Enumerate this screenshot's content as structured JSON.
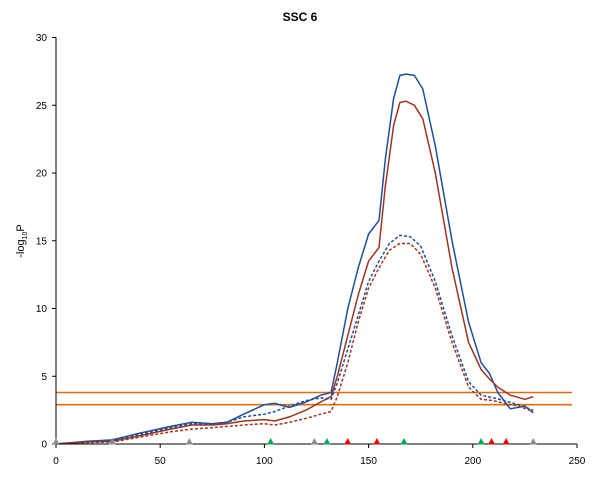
{
  "chart_data": {
    "type": "line",
    "title": "SSC 6",
    "ylabel": "-log10P",
    "ylabel_parts": {
      "prefix": "-log",
      "subscript": "10",
      "suffix": "P"
    },
    "xlabel": "",
    "xlim": [
      0,
      250
    ],
    "ylim": [
      0,
      30
    ],
    "x_ticks": [
      0,
      50,
      100,
      150,
      200,
      250
    ],
    "y_ticks": [
      0,
      5,
      10,
      15,
      20,
      25,
      30
    ],
    "grid": false,
    "legend": "none",
    "thresholds": [
      {
        "value": 3.8,
        "color": "#E46C0A"
      },
      {
        "value": 2.9,
        "color": "#E46C0A"
      }
    ],
    "series": [
      {
        "color": "#1F4E9A",
        "dash": false,
        "points": [
          [
            0,
            0
          ],
          [
            15,
            0.2
          ],
          [
            27,
            0.3
          ],
          [
            40,
            0.8
          ],
          [
            55,
            1.3
          ],
          [
            65,
            1.6
          ],
          [
            75,
            1.5
          ],
          [
            82,
            1.6
          ],
          [
            90,
            2.2
          ],
          [
            100,
            2.9
          ],
          [
            105,
            3.0
          ],
          [
            112,
            2.7
          ],
          [
            120,
            3.1
          ],
          [
            127,
            3.6
          ],
          [
            132,
            3.8
          ],
          [
            135,
            6
          ],
          [
            140,
            10
          ],
          [
            145,
            13
          ],
          [
            150,
            15.5
          ],
          [
            155,
            16.5
          ],
          [
            158,
            21
          ],
          [
            162,
            25.5
          ],
          [
            165,
            27.2
          ],
          [
            168,
            27.3
          ],
          [
            172,
            27.2
          ],
          [
            176,
            26.2
          ],
          [
            182,
            22
          ],
          [
            190,
            15
          ],
          [
            198,
            9
          ],
          [
            204,
            6.0
          ],
          [
            208,
            5.2
          ],
          [
            212,
            3.8
          ],
          [
            218,
            2.6
          ],
          [
            225,
            2.8
          ],
          [
            229,
            2.3
          ]
        ]
      },
      {
        "color": "#A0341E",
        "dash": false,
        "points": [
          [
            0,
            0
          ],
          [
            15,
            0.15
          ],
          [
            27,
            0.2
          ],
          [
            40,
            0.6
          ],
          [
            55,
            1.1
          ],
          [
            65,
            1.4
          ],
          [
            75,
            1.4
          ],
          [
            82,
            1.5
          ],
          [
            90,
            1.7
          ],
          [
            100,
            1.8
          ],
          [
            105,
            1.7
          ],
          [
            112,
            2.0
          ],
          [
            120,
            2.5
          ],
          [
            127,
            3.1
          ],
          [
            132,
            3.5
          ],
          [
            135,
            5
          ],
          [
            140,
            8
          ],
          [
            145,
            11
          ],
          [
            150,
            13.5
          ],
          [
            155,
            14.5
          ],
          [
            158,
            19
          ],
          [
            162,
            23.5
          ],
          [
            165,
            25.2
          ],
          [
            168,
            25.3
          ],
          [
            172,
            25.0
          ],
          [
            176,
            24.0
          ],
          [
            182,
            20
          ],
          [
            190,
            13
          ],
          [
            198,
            7.5
          ],
          [
            204,
            5.5
          ],
          [
            208,
            4.8
          ],
          [
            212,
            4.2
          ],
          [
            218,
            3.6
          ],
          [
            225,
            3.3
          ],
          [
            229,
            3.5
          ]
        ]
      },
      {
        "color": "#1F4E9A",
        "dash": true,
        "points": [
          [
            0,
            0
          ],
          [
            15,
            0.15
          ],
          [
            27,
            0.25
          ],
          [
            40,
            0.7
          ],
          [
            55,
            1.2
          ],
          [
            65,
            1.5
          ],
          [
            75,
            1.5
          ],
          [
            82,
            1.6
          ],
          [
            90,
            2.0
          ],
          [
            100,
            2.2
          ],
          [
            105,
            2.4
          ],
          [
            112,
            2.8
          ],
          [
            120,
            3.2
          ],
          [
            127,
            3.4
          ],
          [
            132,
            3.3
          ],
          [
            135,
            4.5
          ],
          [
            140,
            7
          ],
          [
            145,
            9.5
          ],
          [
            150,
            12
          ],
          [
            155,
            13.5
          ],
          [
            160,
            14.8
          ],
          [
            165,
            15.4
          ],
          [
            170,
            15.3
          ],
          [
            175,
            14.6
          ],
          [
            182,
            12
          ],
          [
            190,
            8
          ],
          [
            198,
            4.6
          ],
          [
            204,
            3.6
          ],
          [
            210,
            3.4
          ],
          [
            215,
            3.2
          ],
          [
            222,
            2.9
          ],
          [
            229,
            2.5
          ]
        ]
      },
      {
        "color": "#A0341E",
        "dash": true,
        "points": [
          [
            0,
            0
          ],
          [
            15,
            0.1
          ],
          [
            27,
            0.15
          ],
          [
            40,
            0.5
          ],
          [
            55,
            0.9
          ],
          [
            65,
            1.1
          ],
          [
            75,
            1.2
          ],
          [
            82,
            1.3
          ],
          [
            90,
            1.4
          ],
          [
            100,
            1.5
          ],
          [
            105,
            1.4
          ],
          [
            112,
            1.6
          ],
          [
            120,
            1.9
          ],
          [
            127,
            2.2
          ],
          [
            132,
            2.4
          ],
          [
            135,
            3.5
          ],
          [
            140,
            6
          ],
          [
            145,
            9
          ],
          [
            150,
            11.5
          ],
          [
            155,
            13
          ],
          [
            160,
            14.3
          ],
          [
            165,
            14.8
          ],
          [
            170,
            14.8
          ],
          [
            175,
            14.0
          ],
          [
            182,
            11.5
          ],
          [
            190,
            7.5
          ],
          [
            198,
            4.2
          ],
          [
            204,
            3.3
          ],
          [
            210,
            3.2
          ],
          [
            215,
            3.0
          ],
          [
            222,
            2.8
          ],
          [
            229,
            2.4
          ]
        ]
      }
    ],
    "markers": [
      {
        "x": 0,
        "color": "#8C8C8C"
      },
      {
        "x": 27,
        "color": "#8C8C8C"
      },
      {
        "x": 64,
        "color": "#8C8C8C"
      },
      {
        "x": 103,
        "color": "#00A651"
      },
      {
        "x": 124,
        "color": "#8C8C8C"
      },
      {
        "x": 130,
        "color": "#00A651"
      },
      {
        "x": 140,
        "color": "#E60000"
      },
      {
        "x": 154,
        "color": "#E60000"
      },
      {
        "x": 167,
        "color": "#00A651"
      },
      {
        "x": 204,
        "color": "#00A651"
      },
      {
        "x": 209,
        "color": "#E60000"
      },
      {
        "x": 216,
        "color": "#E60000"
      },
      {
        "x": 229,
        "color": "#8C8C8C"
      }
    ]
  }
}
